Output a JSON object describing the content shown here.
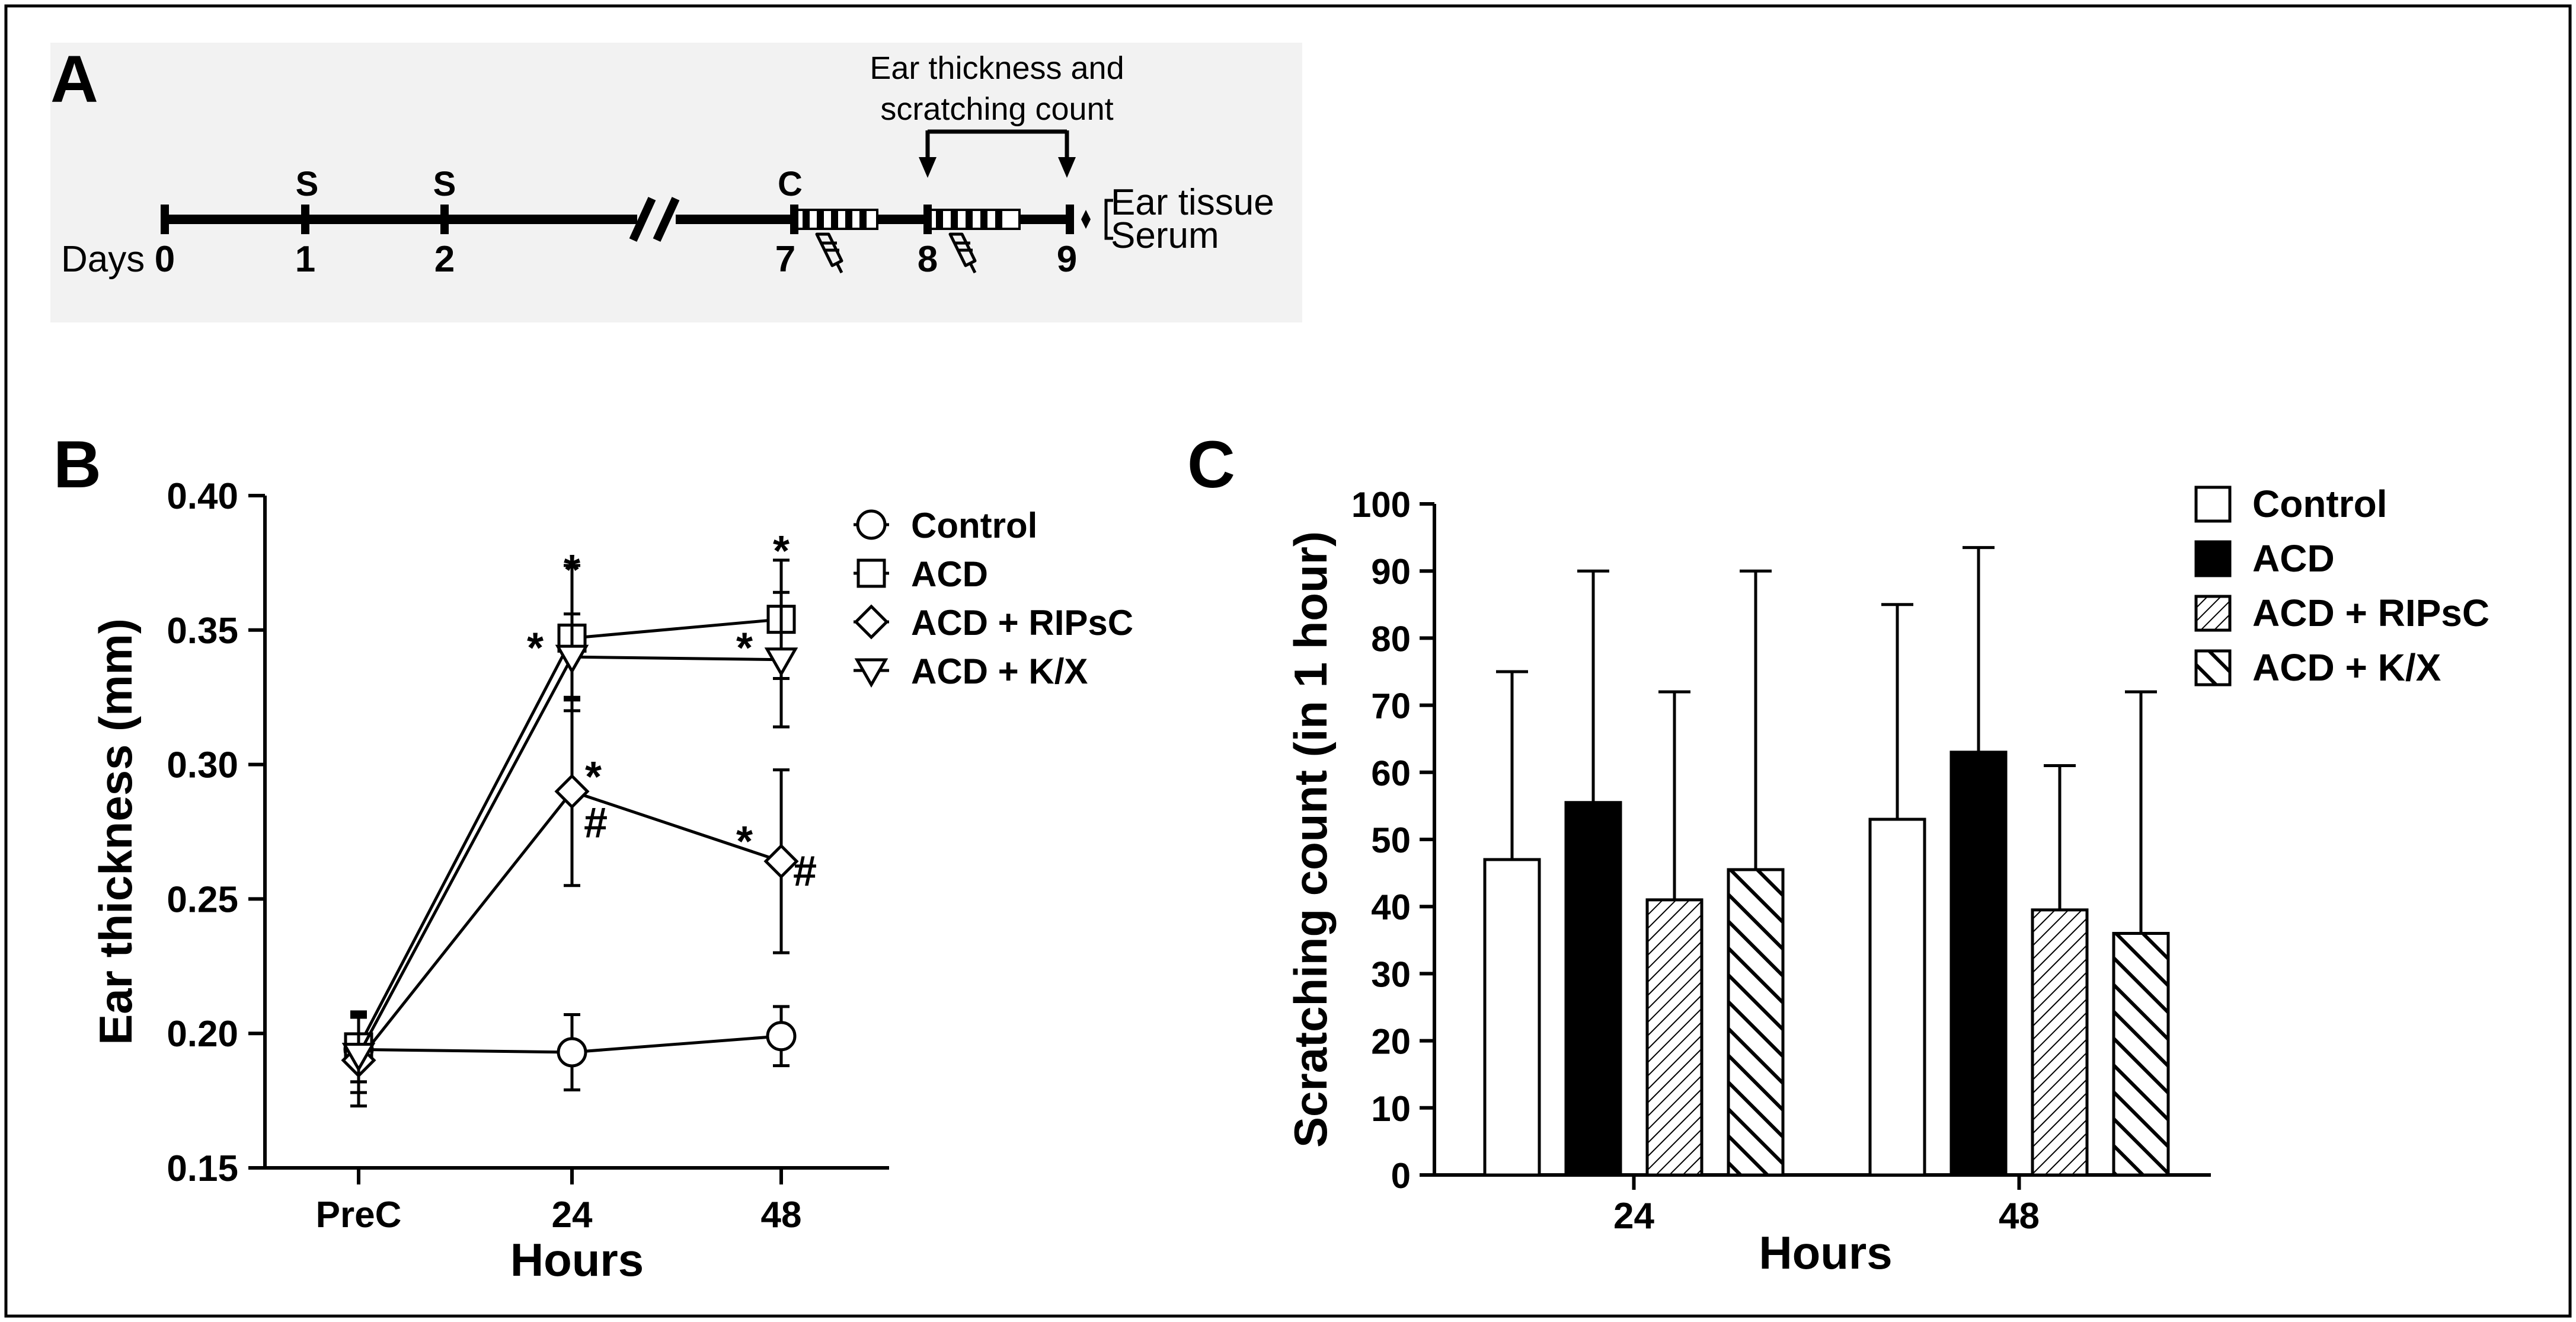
{
  "panel_labels": {
    "a": "A",
    "b": "B",
    "c": "C"
  },
  "timeline": {
    "days_label": "Days",
    "days": [
      "0",
      "1",
      "2",
      "7",
      "8",
      "9"
    ],
    "s_markers": [
      "S",
      "S"
    ],
    "c_marker": "C",
    "measure_label_line1": "Ear thickness and",
    "measure_label_line2": "scratching count",
    "end_label_1": "Ear tissue",
    "end_label_2": "Serum"
  },
  "colors": {
    "black": "#000000",
    "white": "#ffffff",
    "panel_bg": "#f2f2f2"
  },
  "chart_data": [
    {
      "type": "line",
      "panel": "B",
      "categories": [
        "PreC",
        "24",
        "48"
      ],
      "xlabel": "Hours",
      "ylabel": "Ear thickness (mm)",
      "ylim": [
        0.15,
        0.4
      ],
      "yticks": [
        "0.15",
        "0.20",
        "0.25",
        "0.30",
        "0.35",
        "0.40"
      ],
      "legend_position": "top-right",
      "series": [
        {
          "name": "Control",
          "marker": "circle",
          "values": [
            0.194,
            0.193,
            0.199
          ],
          "errors": [
            0.012,
            0.014,
            0.011
          ]
        },
        {
          "name": "ACD",
          "marker": "square",
          "values": [
            0.195,
            0.347,
            0.354
          ],
          "errors": [
            0.013,
            0.027,
            0.022
          ]
        },
        {
          "name": "ACD + RIPsC",
          "marker": "diamond",
          "values": [
            0.19,
            0.29,
            0.264
          ],
          "errors": [
            0.017,
            0.035,
            0.034
          ]
        },
        {
          "name": "ACD + K/X",
          "marker": "triangle-down",
          "values": [
            0.192,
            0.34,
            0.339
          ],
          "errors": [
            0.014,
            0.016,
            0.025
          ]
        }
      ],
      "annotations": [
        {
          "text": "*",
          "series": "ACD",
          "x": "24",
          "y": 0.374,
          "side": "center"
        },
        {
          "text": "*",
          "series": "ACD + K/X",
          "x": "24",
          "y": 0.345,
          "side": "left"
        },
        {
          "text": "*",
          "series": "ACD",
          "x": "48",
          "y": 0.381,
          "side": "center"
        },
        {
          "text": "*",
          "series": "ACD + K/X",
          "x": "48",
          "y": 0.345,
          "side": "left"
        },
        {
          "text": "*",
          "series": "ACD + RIPsC",
          "x": "24",
          "y": 0.297,
          "side": "right"
        },
        {
          "text": "#",
          "series": "ACD + RIPsC",
          "x": "24",
          "y": 0.28,
          "side": "right"
        },
        {
          "text": "*",
          "series": "ACD + RIPsC",
          "x": "48",
          "y": 0.273,
          "side": "left"
        },
        {
          "text": "#",
          "series": "ACD + RIPsC",
          "x": "48",
          "y": 0.262,
          "side": "right"
        }
      ]
    },
    {
      "type": "bar",
      "panel": "C",
      "categories": [
        "24",
        "48"
      ],
      "xlabel": "Hours",
      "ylabel": "Scratching count (in 1 hour)",
      "ylim": [
        0,
        100
      ],
      "yticks": [
        "0",
        "10",
        "20",
        "30",
        "40",
        "50",
        "60",
        "70",
        "80",
        "90",
        "100"
      ],
      "legend_position": "top-right",
      "series": [
        {
          "name": "Control",
          "fill": "white",
          "values": [
            47,
            53
          ],
          "errors": [
            28,
            32
          ]
        },
        {
          "name": "ACD",
          "fill": "black",
          "values": [
            55.5,
            63
          ],
          "errors": [
            34.5,
            30.5
          ]
        },
        {
          "name": "ACD + RIPsC",
          "fill": "hatch-fine",
          "values": [
            41,
            39.5
          ],
          "errors": [
            31,
            21.5
          ]
        },
        {
          "name": "ACD + K/X",
          "fill": "hatch-coarse",
          "values": [
            45.5,
            36
          ],
          "errors": [
            44.5,
            36
          ]
        }
      ]
    }
  ]
}
